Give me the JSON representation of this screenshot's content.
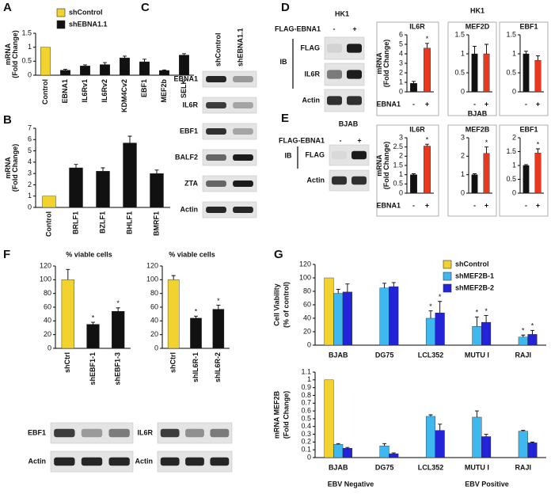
{
  "panel_labels": [
    "A",
    "B",
    "C",
    "D",
    "E",
    "F",
    "G"
  ],
  "chart_data": [
    {
      "type": "bar",
      "categories": [
        "Control",
        "EBNA1",
        "IL6Rv1",
        "IL6Rv2",
        "KDM4Cv2",
        "EBF1",
        "MEF2b",
        "SELK"
      ],
      "series": [
        {
          "name": "shControl",
          "color": "#f2d22e",
          "values": [
            1,
            null,
            null,
            null,
            null,
            null,
            null,
            null
          ],
          "errors": [
            null,
            null,
            null,
            null,
            null,
            null,
            null,
            null
          ]
        },
        {
          "name": "shEBNA1.1",
          "color": "#111111",
          "values": [
            null,
            0.18,
            0.33,
            0.38,
            0.62,
            0.48,
            0.17,
            0.72
          ],
          "errors": [
            null,
            0.03,
            0.04,
            0.07,
            0.06,
            0.09,
            0.02,
            0.05
          ]
        }
      ],
      "ylim": [
        0,
        1.5
      ],
      "yticks": [
        0,
        0.5,
        1,
        1.5
      ],
      "ylabel": [
        "mRNA",
        "(Fold Change)"
      ],
      "legend": "upper left"
    },
    {
      "type": "bar",
      "categories": [
        "Control",
        "BRLF1",
        "BZLF1",
        "BHLF1",
        "BMRF1"
      ],
      "series": [
        {
          "color": "#f2d22e",
          "values": [
            1,
            null,
            null,
            null,
            null
          ],
          "errors": [
            null,
            null,
            null,
            null,
            null
          ]
        },
        {
          "color": "#111111",
          "values": [
            null,
            3.5,
            3.2,
            5.7,
            3.0
          ],
          "errors": [
            null,
            0.3,
            0.3,
            0.6,
            0.3
          ]
        }
      ],
      "ylim": [
        0,
        7
      ],
      "yticks": [
        0,
        1,
        2,
        3,
        4,
        5,
        6,
        7
      ],
      "ylabel": [
        "mRNA",
        "(Fold Change)"
      ]
    },
    {
      "type": "bar",
      "title": "IL6R",
      "categories": [
        "-",
        "+"
      ],
      "xlabel": "EBNA1",
      "star": "*",
      "series": [
        {
          "color": "#111111",
          "values": [
            0.9,
            null
          ],
          "errors": [
            0.2,
            null
          ]
        },
        {
          "color": "#e8381e",
          "values": [
            null,
            4.6
          ],
          "errors": [
            null,
            0.5
          ],
          "significant": [
            false,
            true
          ]
        }
      ],
      "ylim": [
        0,
        6
      ],
      "yticks": [
        0,
        1,
        2,
        3,
        4,
        5,
        6
      ],
      "ylabel": [
        "mRNA",
        "(Fold Change)"
      ]
    },
    {
      "type": "bar",
      "group_title": "HK1",
      "title": "MEF2D",
      "categories": [
        "-",
        "+"
      ],
      "series": [
        {
          "color": "#111111",
          "values": [
            1,
            null
          ],
          "errors": [
            0.2,
            null
          ]
        },
        {
          "color": "#e8381e",
          "values": [
            null,
            1.0
          ],
          "errors": [
            null,
            0.25
          ]
        }
      ],
      "ylim": [
        0,
        1.5
      ],
      "yticks": [
        0,
        0.5,
        1,
        1.5
      ]
    },
    {
      "type": "bar",
      "title": "EBF1",
      "categories": [
        "-",
        "+"
      ],
      "series": [
        {
          "color": "#111111",
          "values": [
            1,
            null
          ],
          "errors": [
            0.07,
            null
          ]
        },
        {
          "color": "#e8381e",
          "values": [
            null,
            0.83
          ],
          "errors": [
            null,
            0.12
          ]
        }
      ],
      "ylim": [
        0,
        1.5
      ],
      "yticks": [
        0,
        0.5,
        1,
        1.5
      ]
    },
    {
      "type": "bar",
      "title": "IL6R",
      "categories": [
        "-",
        "+"
      ],
      "xlabel": "EBNA1",
      "star": "*",
      "series": [
        {
          "color": "#111111",
          "values": [
            1,
            null
          ],
          "errors": [
            0.05,
            null
          ]
        },
        {
          "color": "#e8381e",
          "values": [
            null,
            2.55
          ],
          "errors": [
            null,
            0.1
          ],
          "significant": [
            false,
            true
          ]
        }
      ],
      "ylim": [
        0,
        3
      ],
      "yticks": [
        0,
        0.5,
        1,
        1.5,
        2,
        2.5,
        3
      ],
      "ylabel": [
        "mRNA",
        "(Fold Change)"
      ]
    },
    {
      "type": "bar",
      "group_title": "BJAB",
      "title": "MEF2B",
      "categories": [
        "-",
        "+"
      ],
      "star": "*",
      "series": [
        {
          "color": "#111111",
          "values": [
            1,
            null
          ],
          "errors": [
            0.05,
            null
          ]
        },
        {
          "color": "#e8381e",
          "values": [
            null,
            2.15
          ],
          "errors": [
            null,
            0.35
          ],
          "significant": [
            false,
            true
          ]
        }
      ],
      "ylim": [
        0,
        3
      ],
      "yticks": [
        0,
        1,
        2,
        3
      ]
    },
    {
      "type": "bar",
      "title": "EBF1",
      "categories": [
        "-",
        "+"
      ],
      "star": "*",
      "series": [
        {
          "color": "#111111",
          "values": [
            1,
            null
          ],
          "errors": [
            0.03,
            null
          ]
        },
        {
          "color": "#e8381e",
          "values": [
            null,
            1.45
          ],
          "errors": [
            null,
            0.15
          ],
          "significant": [
            false,
            true
          ]
        }
      ],
      "ylim": [
        0,
        2
      ],
      "yticks": [
        0,
        0.5,
        1,
        1.5,
        2
      ]
    },
    {
      "type": "bar",
      "categories": [
        "shCtrl",
        "shEBF1-1",
        "shEBF1-3"
      ],
      "star": "*",
      "series": [
        {
          "color": "#f2d22e",
          "values": [
            100,
            null,
            null
          ],
          "errors": [
            15,
            null,
            null
          ]
        },
        {
          "color": "#111111",
          "values": [
            null,
            35,
            54
          ],
          "errors": [
            null,
            3,
            5
          ],
          "significant": [
            false,
            true,
            true
          ]
        }
      ],
      "ylim": [
        0,
        120
      ],
      "yticks": [
        0,
        20,
        40,
        60,
        80,
        100,
        120
      ],
      "ylabel": [
        "% viable cells"
      ]
    },
    {
      "type": "bar",
      "categories": [
        "shCtrl",
        "shIL6R-1",
        "shIL6R-2"
      ],
      "star": "*",
      "series": [
        {
          "color": "#f2d22e",
          "values": [
            100,
            null,
            null
          ],
          "errors": [
            6,
            null,
            null
          ]
        },
        {
          "color": "#111111",
          "values": [
            null,
            44,
            57
          ],
          "errors": [
            null,
            3,
            6
          ],
          "significant": [
            false,
            true,
            true
          ]
        }
      ],
      "ylim": [
        0,
        120
      ],
      "yticks": [
        0,
        20,
        40,
        60,
        80,
        100,
        120
      ],
      "ylabel": [
        "% viable cells"
      ]
    },
    {
      "type": "bar",
      "grouped": true,
      "categories": [
        "BJAB",
        "DG75",
        "LCL352",
        "MUTU I",
        "RAJI"
      ],
      "star": "*",
      "series": [
        {
          "name": "shControl",
          "color": "#f2d22e",
          "values": [
            100,
            null,
            null,
            null,
            null
          ],
          "errors": [
            null,
            null,
            null,
            null,
            null
          ]
        },
        {
          "name": "shMEF2B-1",
          "color": "#3fb8f0",
          "values": [
            77,
            85,
            40,
            28,
            12
          ],
          "errors": [
            6,
            7,
            11,
            14,
            3
          ],
          "significant": [
            false,
            false,
            true,
            true,
            true
          ]
        },
        {
          "name": "shMEF2B-2",
          "color": "#2323d8",
          "values": [
            79,
            87,
            48,
            34,
            16
          ],
          "errors": [
            12,
            6,
            17,
            10,
            6
          ],
          "significant": [
            false,
            false,
            true,
            true,
            true
          ]
        }
      ],
      "ylim": [
        0,
        120
      ],
      "yticks": [
        0,
        20,
        40,
        60,
        80,
        100,
        120
      ],
      "ylabel": [
        "Cell Viability",
        "(% of control)"
      ],
      "legend": "upper right"
    },
    {
      "type": "bar",
      "grouped": true,
      "categories": [
        "BJAB",
        "DG75",
        "LCL352",
        "MUTU I",
        "RAJI"
      ],
      "series": [
        {
          "color": "#f2d22e",
          "values": [
            1,
            null,
            null,
            null,
            null
          ],
          "errors": [
            null,
            null,
            null,
            null,
            null
          ]
        },
        {
          "color": "#3fb8f0",
          "values": [
            0.17,
            0.15,
            0.53,
            0.52,
            0.34
          ],
          "errors": [
            0.01,
            0.03,
            0.02,
            0.08,
            0.01
          ]
        },
        {
          "color": "#2323d8",
          "values": [
            0.12,
            0.05,
            0.35,
            0.27,
            0.19
          ],
          "errors": [
            0.01,
            0.01,
            0.08,
            0.03,
            0.01
          ]
        }
      ],
      "ylim": [
        0,
        1.1
      ],
      "yticks": [
        0,
        0.1,
        0.2,
        0.3,
        0.4,
        0.5,
        0.6,
        0.7,
        0.8,
        0.9,
        1,
        1.1
      ],
      "ylabel": [
        "mRNA MEF2B",
        "(Fold Change)"
      ],
      "group_labels": [
        "EBV Negative",
        "EBV Positive"
      ]
    }
  ],
  "blots": [
    {
      "columns": [
        "shControl",
        "shEBNA1.1"
      ],
      "rows": [
        "EBNA1",
        "IL6R",
        "EBF1",
        "BALF2",
        "ZTA",
        "Actin"
      ]
    },
    {
      "title": "HK1",
      "column_header": "FLAG-EBNA1",
      "columns": [
        "-",
        "+"
      ],
      "group": "IB",
      "rows": [
        "FLAG",
        "IL6R",
        "Actin"
      ]
    },
    {
      "title": "BJAB",
      "column_header": "FLAG-EBNA1",
      "columns": [
        "-",
        "+"
      ],
      "group": "IB",
      "rows": [
        "FLAG",
        "Actin"
      ]
    },
    {
      "rows": [
        "EBF1",
        "Actin"
      ]
    },
    {
      "rows": [
        "IL6R",
        "Actin"
      ]
    }
  ]
}
